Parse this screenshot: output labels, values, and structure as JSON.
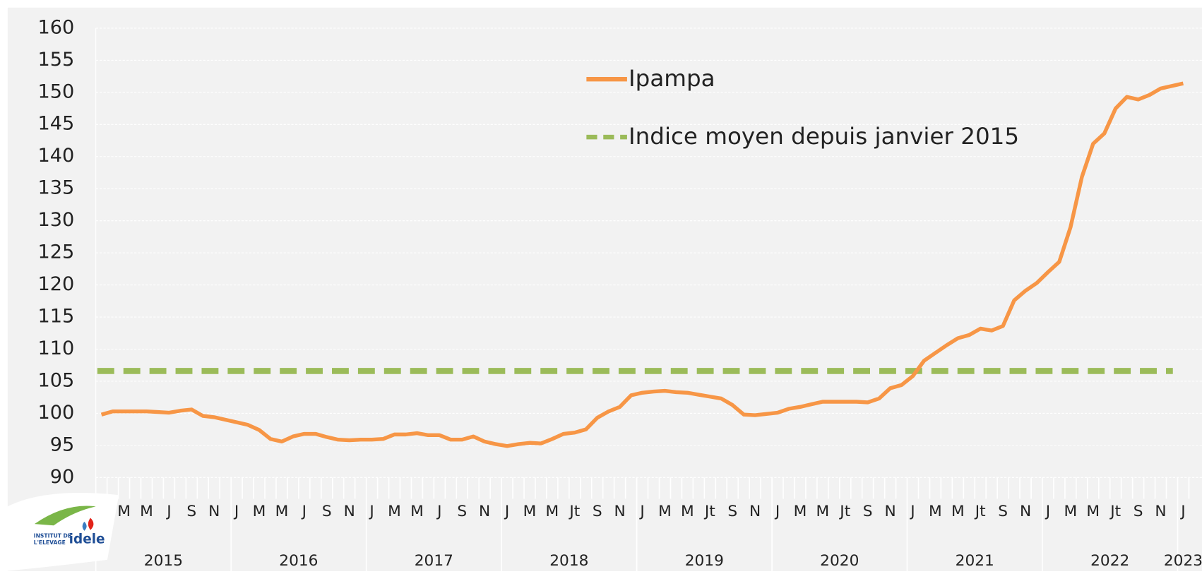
{
  "chart_data": {
    "type": "line",
    "categories": [
      "J",
      null,
      "M",
      null,
      "M",
      null,
      "J",
      null,
      "S",
      null,
      "N",
      null,
      "J",
      null,
      "M",
      null,
      "M",
      null,
      "J",
      null,
      "S",
      null,
      "N",
      null,
      "J",
      null,
      "M",
      null,
      "M",
      null,
      "J",
      null,
      "S",
      null,
      "N",
      null,
      "J",
      null,
      "M",
      null,
      "M",
      null,
      "Jt",
      null,
      "S",
      null,
      "N",
      null,
      "J",
      null,
      "M",
      null,
      "M",
      null,
      "Jt",
      null,
      "S",
      null,
      "N",
      null,
      "J",
      null,
      "M",
      null,
      "M",
      null,
      "Jt",
      null,
      "S",
      null,
      "N",
      null,
      "J",
      null,
      "M",
      null,
      "M",
      null,
      "Jt",
      null,
      "S",
      null,
      "N",
      null,
      "J",
      null,
      "M",
      null,
      "M",
      null,
      "Jt",
      null,
      "S",
      null,
      "N",
      null,
      "J"
    ],
    "years": [
      "2015",
      "2016",
      "2017",
      "2018",
      "2019",
      "2020",
      "2021",
      "2022",
      "2023"
    ],
    "series": [
      {
        "name": "Ipampa",
        "color": "#f79646",
        "values": [
          99.8,
          100.3,
          100.3,
          100.3,
          100.3,
          100.2,
          100.1,
          100.4,
          100.6,
          99.6,
          99.4,
          99.0,
          98.6,
          98.2,
          97.4,
          96.0,
          95.6,
          96.4,
          96.8,
          96.8,
          96.3,
          95.9,
          95.8,
          95.9,
          95.9,
          96.0,
          96.7,
          96.7,
          96.9,
          96.6,
          96.6,
          95.9,
          95.9,
          96.4,
          95.6,
          95.2,
          94.9,
          95.2,
          95.4,
          95.3,
          96.0,
          96.8,
          97.0,
          97.5,
          99.3,
          100.3,
          101.0,
          102.8,
          103.2,
          103.4,
          103.5,
          103.3,
          103.2,
          102.9,
          102.6,
          102.3,
          101.3,
          99.8,
          99.7,
          99.9,
          100.1,
          100.7,
          101.0,
          101.4,
          101.8,
          101.8,
          101.8,
          101.8,
          101.7,
          102.3,
          103.9,
          104.4,
          105.8,
          108.2,
          109.4,
          110.6,
          111.7,
          112.2,
          113.2,
          112.9,
          113.6,
          117.6,
          119.1,
          120.3,
          122.0,
          123.6,
          129.0,
          136.8,
          142.0,
          143.6,
          147.5,
          149.3,
          148.9,
          149.6,
          150.6,
          151.0,
          151.4
        ]
      }
    ],
    "reference_line": {
      "name": "Indice moyen depuis janvier 2015",
      "color": "#9bbb59",
      "value": 106.6
    },
    "ylim": [
      90,
      160
    ],
    "yticks": [
      90,
      95,
      100,
      105,
      110,
      115,
      120,
      125,
      130,
      135,
      140,
      145,
      150,
      155,
      160
    ],
    "grid": true
  },
  "logo": {
    "line1": "INSTITUT DE",
    "line2": "L'ELEVAGE",
    "brand": "idele"
  }
}
